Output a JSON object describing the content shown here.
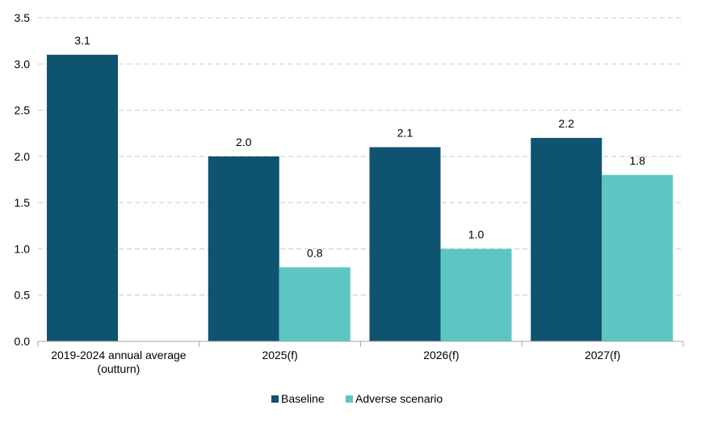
{
  "chart_data": {
    "type": "bar",
    "categories": [
      [
        "2019-2024 annual average",
        "(outturn)"
      ],
      [
        "2025(f)"
      ],
      [
        "2026(f)"
      ],
      [
        "2027(f)"
      ]
    ],
    "series": [
      {
        "name": "Baseline",
        "color": "#0e5370",
        "values": [
          3.1,
          2.0,
          2.1,
          2.2
        ]
      },
      {
        "name": "Adverse scenario",
        "color": "#5ec6c2",
        "values": [
          null,
          0.8,
          1.0,
          1.8
        ]
      }
    ],
    "data_labels": [
      [
        "3.1",
        "2.0",
        "2.1",
        "2.2"
      ],
      [
        "",
        "0.8",
        "1.0",
        "1.8"
      ]
    ],
    "ylim": [
      0,
      3.5
    ],
    "yticks": [
      0,
      0.5,
      1.0,
      1.5,
      2.0,
      2.5,
      3.0,
      3.5
    ],
    "ytick_labels": [
      "0.0",
      "0.5",
      "1.0",
      "1.5",
      "2.0",
      "2.5",
      "3.0",
      "3.5"
    ],
    "grid": "horizontal dashed",
    "legend_position": "bottom-center",
    "title": "",
    "xlabel": "",
    "ylabel": ""
  }
}
